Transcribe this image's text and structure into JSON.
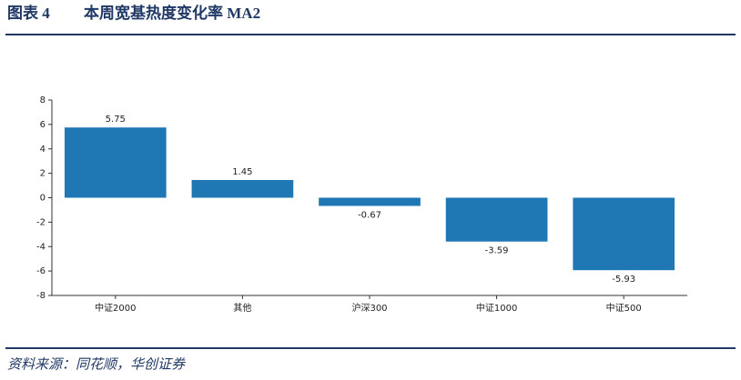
{
  "figure_label": "图表 4",
  "source": "资料来源：同花顺，华创证券",
  "chart_data": {
    "type": "bar",
    "title": "本周宽基热度变化率 MA2",
    "categories": [
      "中证2000",
      "其他",
      "沪深300",
      "中证1000",
      "中证500"
    ],
    "values": [
      5.75,
      1.45,
      -0.67,
      -3.59,
      -5.93
    ],
    "color": "#1f77b4",
    "ylim": [
      -8,
      8
    ],
    "yticks": [
      -8,
      -6,
      -4,
      -2,
      0,
      2,
      4,
      6,
      8
    ],
    "grid": false
  }
}
